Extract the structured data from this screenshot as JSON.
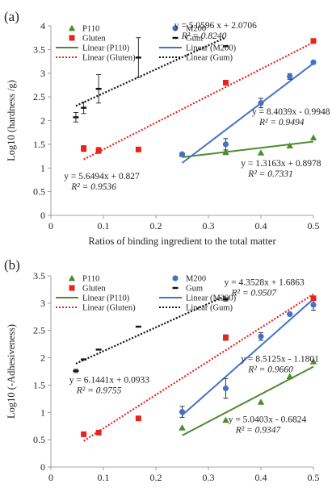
{
  "colors": {
    "P110": "#4e8a2e",
    "M200": "#4472c4",
    "Gluten": "#e8231e",
    "Gum": "#111111"
  },
  "chart_data": [
    {
      "type": "scatter",
      "panel_label": "(a)",
      "ylabel": "Log10 (hardness /g)",
      "xlabel": "Ratios of binding ingredient to the total matter",
      "xlim": [
        0,
        0.5
      ],
      "ylim": [
        0,
        4
      ],
      "xticks": [
        "0",
        "0.1",
        "0.2",
        "0.3",
        "0.4",
        "0.5"
      ],
      "yticks": [
        "0",
        "0.5",
        "1",
        "1.5",
        "2",
        "2.5",
        "3",
        "3.5",
        "4"
      ],
      "legend": {
        "placement": "top-left",
        "entries": [
          "P110",
          "M200",
          "Gluten",
          "Gum",
          "Linear (P110)",
          "Linear (M200)",
          "Linear (Gluten)",
          "Linear (Gum)"
        ]
      },
      "series": [
        {
          "name": "P110",
          "color_key": "P110",
          "marker": "triangle",
          "points": [
            {
              "x": 0.25,
              "y": 1.29,
              "err": 0
            },
            {
              "x": 0.333,
              "y": 1.33,
              "err": 0
            },
            {
              "x": 0.4,
              "y": 1.32,
              "err": 0
            },
            {
              "x": 0.455,
              "y": 1.47,
              "err": 0
            },
            {
              "x": 0.5,
              "y": 1.64,
              "err": 0
            }
          ],
          "fit": {
            "slope": 1.3163,
            "intercept": 0.8978,
            "x": [
              0.25,
              0.5
            ],
            "style": "solid"
          }
        },
        {
          "name": "M200",
          "color_key": "M200",
          "marker": "circle",
          "points": [
            {
              "x": 0.25,
              "y": 1.29,
              "err": 0
            },
            {
              "x": 0.333,
              "y": 1.5,
              "err": 0.12
            },
            {
              "x": 0.4,
              "y": 2.37,
              "err": 0.1
            },
            {
              "x": 0.455,
              "y": 2.93,
              "err": 0.06
            },
            {
              "x": 0.5,
              "y": 3.23,
              "err": 0
            }
          ],
          "fit": {
            "slope": 8.4039,
            "intercept": -0.9948,
            "x": [
              0.25,
              0.5
            ],
            "style": "solid"
          }
        },
        {
          "name": "Gluten",
          "color_key": "Gluten",
          "marker": "square",
          "points": [
            {
              "x": 0.0625,
              "y": 1.41,
              "err": 0.06
            },
            {
              "x": 0.0909,
              "y": 1.37,
              "err": 0.06
            },
            {
              "x": 0.1667,
              "y": 1.39,
              "err": 0
            },
            {
              "x": 0.333,
              "y": 2.8,
              "err": 0
            },
            {
              "x": 0.5,
              "y": 3.68,
              "err": 0
            }
          ],
          "fit": {
            "slope": 5.6494,
            "intercept": 0.827,
            "x": [
              0.0625,
              0.5
            ],
            "style": "dotted"
          }
        },
        {
          "name": "Gum",
          "color_key": "Gum",
          "marker": "dash",
          "points": [
            {
              "x": 0.0476,
              "y": 2.07,
              "err": 0.1
            },
            {
              "x": 0.0625,
              "y": 2.27,
              "err": 0.12
            },
            {
              "x": 0.0909,
              "y": 2.67,
              "err": 0.3
            },
            {
              "x": 0.1667,
              "y": 3.33,
              "err": 0.42
            },
            {
              "x": 0.333,
              "y": 3.57,
              "err": 0
            }
          ],
          "fit": {
            "slope": 5.0596,
            "intercept": 2.0706,
            "x": [
              0.0476,
              0.333
            ],
            "style": "dotted"
          }
        }
      ],
      "annotations": [
        {
          "series": "Gum",
          "equation": "y = 5.0596 x + 2.0706",
          "r2": "R² = 0.8240",
          "ax": 0.235,
          "ay": 3.95
        },
        {
          "series": "M200",
          "equation": "y = 8.4039x - 0.9948",
          "r2": "R² = 0.9494",
          "ax": 0.383,
          "ay": 2.13
        },
        {
          "series": "P110",
          "equation": "y = 1.3163x + 0.8978",
          "r2": "R² = 0.7331",
          "ax": 0.362,
          "ay": 1.04
        },
        {
          "series": "Gluten",
          "equation": "y = 5.6494x + 0.827",
          "r2": "R² = 0.9536",
          "ax": 0.025,
          "ay": 0.77
        }
      ]
    },
    {
      "type": "scatter",
      "panel_label": "(b)",
      "ylabel": "Log10 (-Adhesiveness)",
      "xlabel": "Ratios of binding ingredient to the total matter",
      "xlim": [
        0,
        0.5
      ],
      "ylim": [
        0,
        3.5
      ],
      "xticks": [
        "0",
        "0.1",
        "0.2",
        "0.3",
        "0.4",
        "0.5"
      ],
      "yticks": [
        "0",
        "0.5",
        "1",
        "1.5",
        "2",
        "2.5",
        "3",
        "3.5"
      ],
      "legend": {
        "placement": "top-left",
        "entries": [
          "P110",
          "M200",
          "Gluten",
          "Gum",
          "Linear (P110)",
          "Linear (M200)",
          "Linear (Gluten)",
          "Linear (Gum)"
        ]
      },
      "series": [
        {
          "name": "P110",
          "color_key": "P110",
          "marker": "triangle",
          "points": [
            {
              "x": 0.25,
              "y": 0.72,
              "err": 0
            },
            {
              "x": 0.333,
              "y": 0.86,
              "err": 0
            },
            {
              "x": 0.4,
              "y": 1.19,
              "err": 0
            },
            {
              "x": 0.455,
              "y": 1.66,
              "err": 0
            },
            {
              "x": 0.5,
              "y": 1.93,
              "err": 0
            }
          ],
          "fit": {
            "slope": 5.0403,
            "intercept": -0.6824,
            "x": [
              0.25,
              0.5
            ],
            "style": "solid"
          }
        },
        {
          "name": "M200",
          "color_key": "M200",
          "marker": "circle",
          "points": [
            {
              "x": 0.25,
              "y": 1.01,
              "err": 0.1
            },
            {
              "x": 0.333,
              "y": 1.44,
              "err": 0.18
            },
            {
              "x": 0.4,
              "y": 2.39,
              "err": 0.07
            },
            {
              "x": 0.455,
              "y": 2.8,
              "err": 0
            },
            {
              "x": 0.5,
              "y": 2.97,
              "err": 0.1
            }
          ],
          "fit": {
            "slope": 8.5125,
            "intercept": -1.1801,
            "x": [
              0.25,
              0.5
            ],
            "style": "solid"
          }
        },
        {
          "name": "Gluten",
          "color_key": "Gluten",
          "marker": "square",
          "points": [
            {
              "x": 0.0625,
              "y": 0.6,
              "err": 0
            },
            {
              "x": 0.0909,
              "y": 0.63,
              "err": 0
            },
            {
              "x": 0.1667,
              "y": 0.89,
              "err": 0
            },
            {
              "x": 0.333,
              "y": 2.37,
              "err": 0.05
            },
            {
              "x": 0.5,
              "y": 3.09,
              "err": 0
            }
          ],
          "fit": {
            "slope": 6.1441,
            "intercept": 0.0933,
            "x": [
              0.0625,
              0.5
            ],
            "style": "dotted"
          }
        },
        {
          "name": "Gum",
          "color_key": "Gum",
          "marker": "dash",
          "points": [
            {
              "x": 0.0476,
              "y": 1.76,
              "err": 0.03
            },
            {
              "x": 0.0625,
              "y": 1.97,
              "err": 0
            },
            {
              "x": 0.0909,
              "y": 2.15,
              "err": 0
            },
            {
              "x": 0.1667,
              "y": 2.57,
              "err": 0
            },
            {
              "x": 0.333,
              "y": 3.07,
              "err": 0.03
            }
          ],
          "fit": {
            "slope": 4.3528,
            "intercept": 1.6863,
            "x": [
              0.0476,
              0.333
            ],
            "style": "dotted"
          }
        }
      ],
      "annotations": [
        {
          "series": "Gum",
          "equation": "y = 4.3528x + 1.6863",
          "r2": "R² = 0.9507",
          "ax": 0.33,
          "ay": 3.33
        },
        {
          "series": "M200",
          "equation": "y = 8.5125x - 1.1801",
          "r2": "R² = 0.9660",
          "ax": 0.362,
          "ay": 1.93
        },
        {
          "series": "Gluten",
          "equation": "y = 6.1441x + 0.0933",
          "r2": "R² = 0.9755",
          "ax": 0.035,
          "ay": 1.54
        },
        {
          "series": "P110",
          "equation": "y = 5.0403x - 0.6824",
          "r2": "R² = 0.9347",
          "ax": 0.338,
          "ay": 0.82
        }
      ]
    }
  ]
}
